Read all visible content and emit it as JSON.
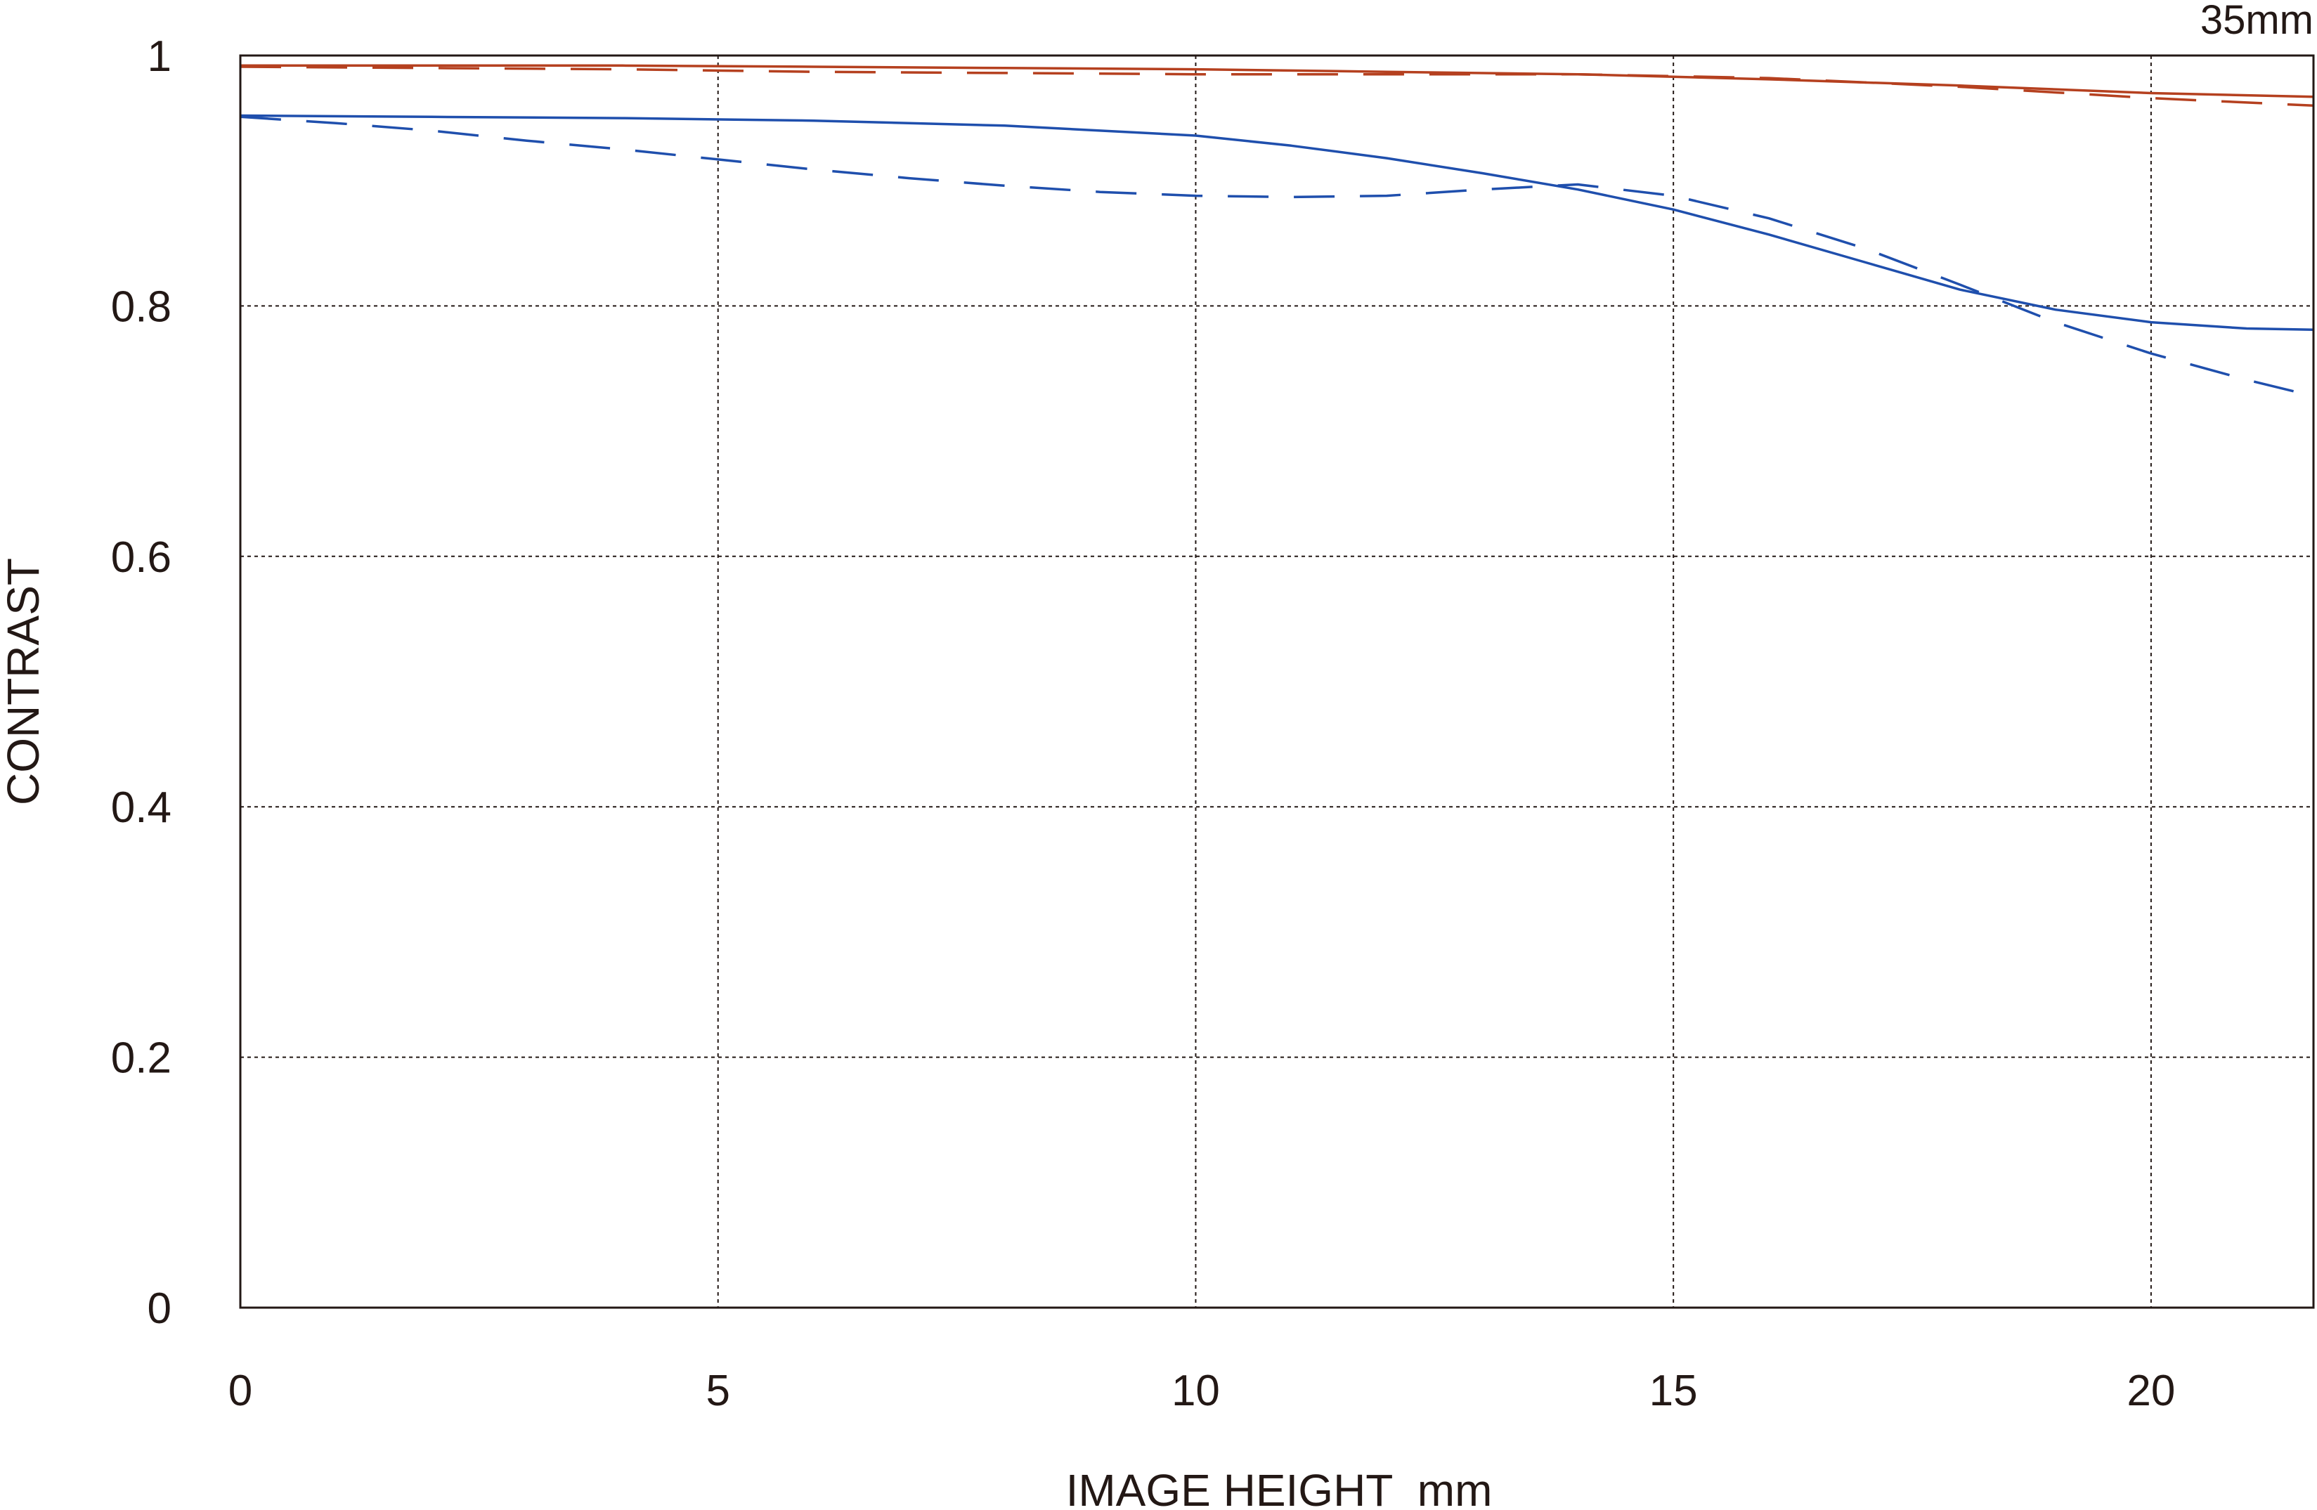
{
  "chart_data": {
    "type": "line",
    "title": "",
    "annotation": "35mm",
    "xlabel": "IMAGE HEIGHT  mm",
    "ylabel": "CONTRAST",
    "xlim": [
      0,
      21.7
    ],
    "ylim": [
      0,
      1
    ],
    "x_ticks": [
      "0",
      "5",
      "10",
      "15",
      "20"
    ],
    "y_ticks": [
      "0",
      "0.2",
      "0.4",
      "0.6",
      "0.8",
      "1"
    ],
    "grid": true,
    "colors": {
      "red": "#b5401f",
      "blue": "#1f4fad",
      "grid": "#231815",
      "axis": "#231815"
    },
    "series": [
      {
        "color": "#b5401f",
        "style": "solid",
        "x": [
          0,
          2,
          4,
          6,
          8,
          10,
          12,
          14,
          16,
          18,
          20,
          21.7
        ],
        "y": [
          0.992,
          0.992,
          0.992,
          0.991,
          0.99,
          0.989,
          0.987,
          0.985,
          0.981,
          0.976,
          0.97,
          0.967
        ]
      },
      {
        "color": "#b5401f",
        "style": "dashed",
        "x": [
          0,
          2,
          4,
          6,
          8,
          10,
          12,
          14,
          16,
          18,
          20,
          21.7
        ],
        "y": [
          0.991,
          0.99,
          0.989,
          0.987,
          0.986,
          0.985,
          0.985,
          0.985,
          0.982,
          0.975,
          0.966,
          0.96
        ]
      },
      {
        "color": "#1f4fad",
        "style": "solid",
        "x": [
          0,
          2,
          4,
          6,
          8,
          10,
          11,
          12,
          13,
          14,
          15,
          16,
          17,
          18,
          19,
          20,
          21,
          21.7
        ],
        "y": [
          0.952,
          0.951,
          0.95,
          0.948,
          0.944,
          0.936,
          0.928,
          0.918,
          0.906,
          0.893,
          0.877,
          0.857,
          0.835,
          0.813,
          0.797,
          0.787,
          0.782,
          0.781
        ]
      },
      {
        "color": "#1f4fad",
        "style": "dashed",
        "x": [
          0,
          1,
          2,
          3,
          4,
          5,
          6,
          7,
          8,
          9,
          10,
          11,
          12,
          13,
          14,
          15,
          16,
          17,
          18,
          19,
          20,
          21,
          21.7
        ],
        "y": [
          0.951,
          0.946,
          0.94,
          0.932,
          0.925,
          0.917,
          0.909,
          0.902,
          0.896,
          0.891,
          0.888,
          0.887,
          0.888,
          0.893,
          0.897,
          0.888,
          0.87,
          0.846,
          0.817,
          0.787,
          0.762,
          0.741,
          0.728
        ]
      }
    ]
  }
}
